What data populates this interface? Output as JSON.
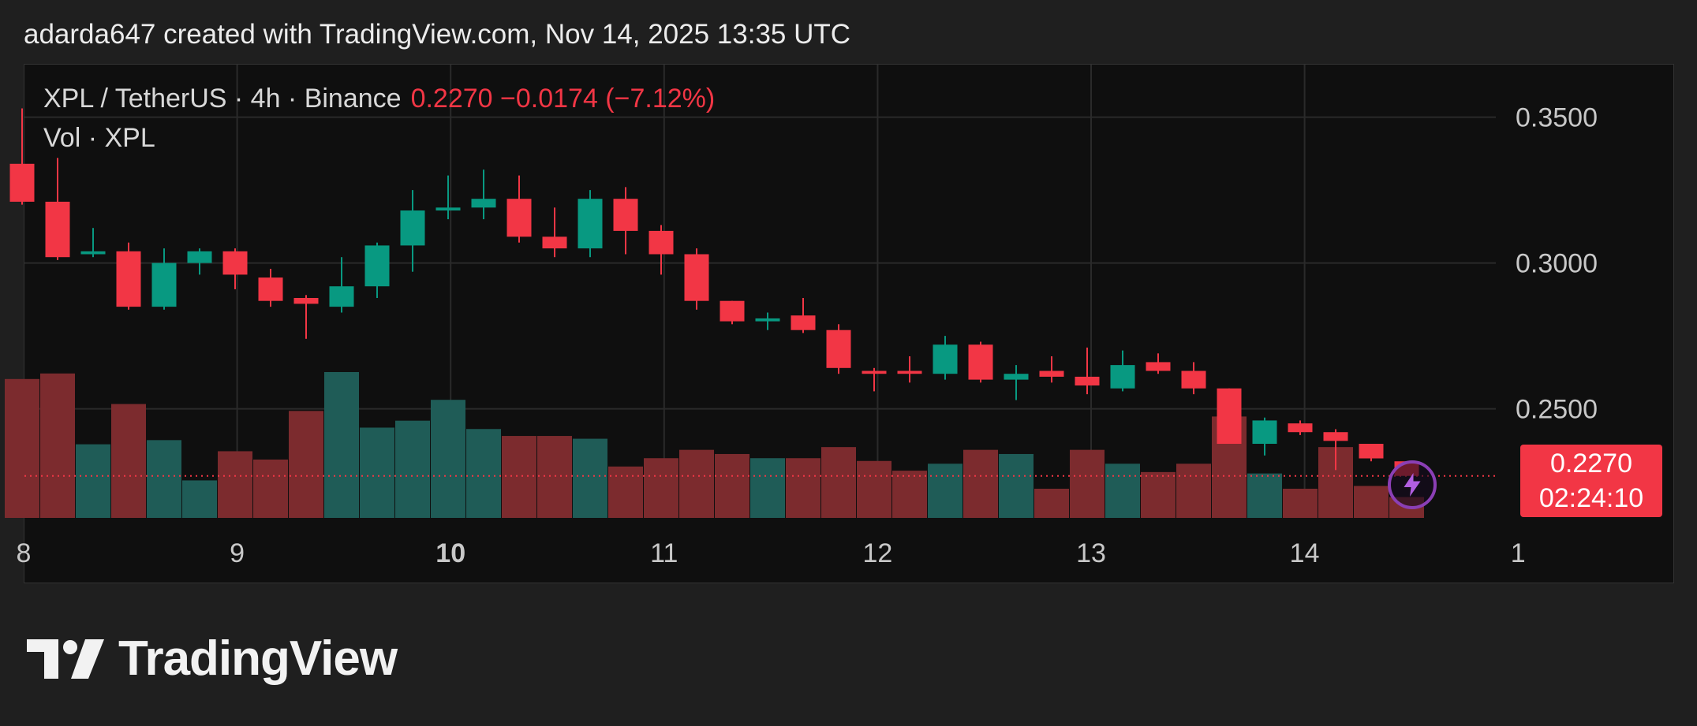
{
  "caption": "adarda647 created with TradingView.com, Nov 14, 2025 13:35 UTC",
  "legend": {
    "symbol_line": "XPL / TetherUS · 4h · Binance",
    "price_change": "0.2270  −0.0174 (−7.12%)",
    "volume_label": "Vol · XPL"
  },
  "price_badge": {
    "price": "0.2270",
    "countdown": "02:24:10"
  },
  "logo_text": "TradingView",
  "colors": {
    "up": "#089981",
    "down": "#f23645",
    "up_volume": "#1f5c57",
    "down_volume": "#7c2b2e",
    "grid": "#2a2a2a",
    "badge": "#f23645",
    "flash": "#8b3fb5"
  },
  "icons": [
    "flash-icon",
    "tradingview-logo-icon"
  ],
  "chart_data": {
    "type": "candlestick",
    "interval": "4h",
    "x_tick_labels": [
      "8",
      "9",
      "10",
      "11",
      "12",
      "13",
      "14",
      "1"
    ],
    "y_tick_labels": [
      "0.3500",
      "0.3000",
      "0.2500"
    ],
    "ylim": [
      0.2126,
      0.368
    ],
    "last_price": 0.227,
    "grid": true,
    "candles": [
      {
        "o": 0.334,
        "h": 0.353,
        "l": 0.32,
        "c": 0.321
      },
      {
        "o": 0.321,
        "h": 0.336,
        "l": 0.301,
        "c": 0.302
      },
      {
        "o": 0.303,
        "h": 0.312,
        "l": 0.302,
        "c": 0.304
      },
      {
        "o": 0.304,
        "h": 0.307,
        "l": 0.284,
        "c": 0.285
      },
      {
        "o": 0.285,
        "h": 0.305,
        "l": 0.284,
        "c": 0.3
      },
      {
        "o": 0.3,
        "h": 0.305,
        "l": 0.296,
        "c": 0.304
      },
      {
        "o": 0.304,
        "h": 0.305,
        "l": 0.291,
        "c": 0.296
      },
      {
        "o": 0.295,
        "h": 0.298,
        "l": 0.285,
        "c": 0.287
      },
      {
        "o": 0.288,
        "h": 0.289,
        "l": 0.274,
        "c": 0.286
      },
      {
        "o": 0.285,
        "h": 0.302,
        "l": 0.283,
        "c": 0.292
      },
      {
        "o": 0.292,
        "h": 0.307,
        "l": 0.288,
        "c": 0.306
      },
      {
        "o": 0.306,
        "h": 0.325,
        "l": 0.297,
        "c": 0.318
      },
      {
        "o": 0.318,
        "h": 0.33,
        "l": 0.315,
        "c": 0.319
      },
      {
        "o": 0.319,
        "h": 0.332,
        "l": 0.315,
        "c": 0.322
      },
      {
        "o": 0.322,
        "h": 0.33,
        "l": 0.307,
        "c": 0.309
      },
      {
        "o": 0.309,
        "h": 0.319,
        "l": 0.302,
        "c": 0.305
      },
      {
        "o": 0.305,
        "h": 0.325,
        "l": 0.302,
        "c": 0.322
      },
      {
        "o": 0.322,
        "h": 0.326,
        "l": 0.303,
        "c": 0.311
      },
      {
        "o": 0.311,
        "h": 0.313,
        "l": 0.296,
        "c": 0.303
      },
      {
        "o": 0.303,
        "h": 0.305,
        "l": 0.284,
        "c": 0.287
      },
      {
        "o": 0.287,
        "h": 0.287,
        "l": 0.279,
        "c": 0.28
      },
      {
        "o": 0.28,
        "h": 0.283,
        "l": 0.277,
        "c": 0.281
      },
      {
        "o": 0.282,
        "h": 0.288,
        "l": 0.276,
        "c": 0.277
      },
      {
        "o": 0.277,
        "h": 0.279,
        "l": 0.262,
        "c": 0.264
      },
      {
        "o": 0.263,
        "h": 0.264,
        "l": 0.256,
        "c": 0.262
      },
      {
        "o": 0.263,
        "h": 0.268,
        "l": 0.259,
        "c": 0.262
      },
      {
        "o": 0.262,
        "h": 0.275,
        "l": 0.26,
        "c": 0.272
      },
      {
        "o": 0.272,
        "h": 0.273,
        "l": 0.259,
        "c": 0.26
      },
      {
        "o": 0.26,
        "h": 0.265,
        "l": 0.253,
        "c": 0.262
      },
      {
        "o": 0.263,
        "h": 0.268,
        "l": 0.259,
        "c": 0.261
      },
      {
        "o": 0.261,
        "h": 0.271,
        "l": 0.255,
        "c": 0.258
      },
      {
        "o": 0.257,
        "h": 0.27,
        "l": 0.256,
        "c": 0.265
      },
      {
        "o": 0.266,
        "h": 0.269,
        "l": 0.262,
        "c": 0.263
      },
      {
        "o": 0.263,
        "h": 0.266,
        "l": 0.255,
        "c": 0.257
      },
      {
        "o": 0.257,
        "h": 0.257,
        "l": 0.238,
        "c": 0.238
      },
      {
        "o": 0.238,
        "h": 0.247,
        "l": 0.234,
        "c": 0.246
      },
      {
        "o": 0.245,
        "h": 0.246,
        "l": 0.241,
        "c": 0.242
      },
      {
        "o": 0.242,
        "h": 0.243,
        "l": 0.229,
        "c": 0.239
      },
      {
        "o": 0.238,
        "h": 0.238,
        "l": 0.232,
        "c": 0.233
      },
      {
        "o": 0.232,
        "h": 0.232,
        "l": 0.227,
        "c": 0.227
      }
    ],
    "volume_rel": [
      1.0,
      1.04,
      0.53,
      0.82,
      0.56,
      0.27,
      0.48,
      0.42,
      0.77,
      1.05,
      0.65,
      0.7,
      0.85,
      0.64,
      0.59,
      0.59,
      0.57,
      0.37,
      0.43,
      0.49,
      0.46,
      0.43,
      0.43,
      0.51,
      0.41,
      0.34,
      0.39,
      0.49,
      0.46,
      0.21,
      0.49,
      0.39,
      0.33,
      0.39,
      0.73,
      0.32,
      0.21,
      0.51,
      0.23,
      0.15
    ]
  }
}
